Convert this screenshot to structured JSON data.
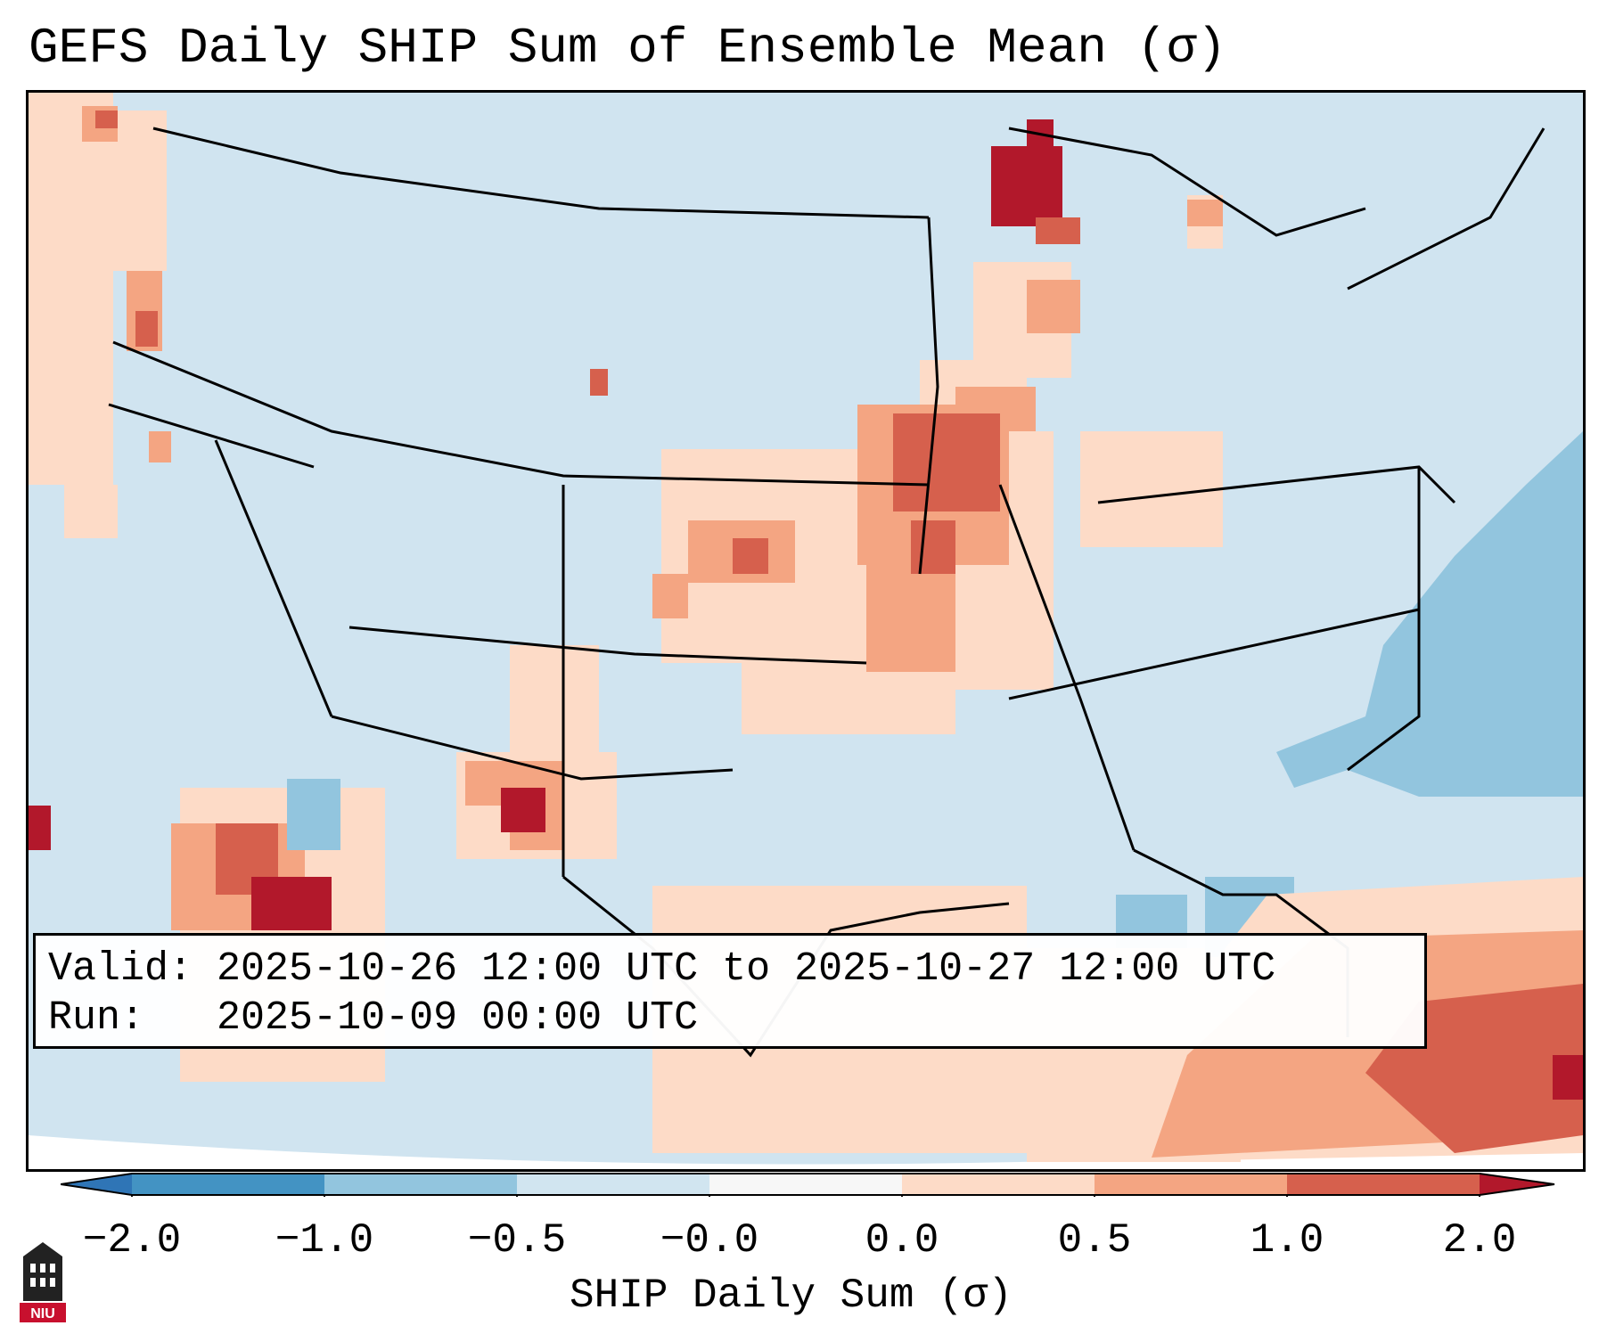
{
  "title": "GEFS Daily SHIP Sum of Ensemble Mean (σ)",
  "info": {
    "valid_label": "Valid:",
    "valid_value": "2025-10-26 12:00 UTC to 2025-10-27 12:00 UTC",
    "run_label": "Run:",
    "run_value": "2025-10-09 00:00 UTC"
  },
  "colorbar": {
    "label": "SHIP Daily Sum (σ)",
    "ticks": [
      "−2.0",
      "−1.0",
      "−0.5",
      "−0.0",
      "0.0",
      "0.5",
      "1.0",
      "2.0"
    ],
    "colors": {
      "extend_low": "#2f75b6",
      "b1": "#4393c3",
      "b2": "#92c5de",
      "b3": "#d1e5f0",
      "b4": "#f7f7f7",
      "b5": "#fddbc7",
      "b6": "#f4a582",
      "b7": "#d6604d",
      "extend_high": "#b2182b"
    }
  },
  "logo": {
    "text": "NIU",
    "color": "#c8102e"
  }
}
